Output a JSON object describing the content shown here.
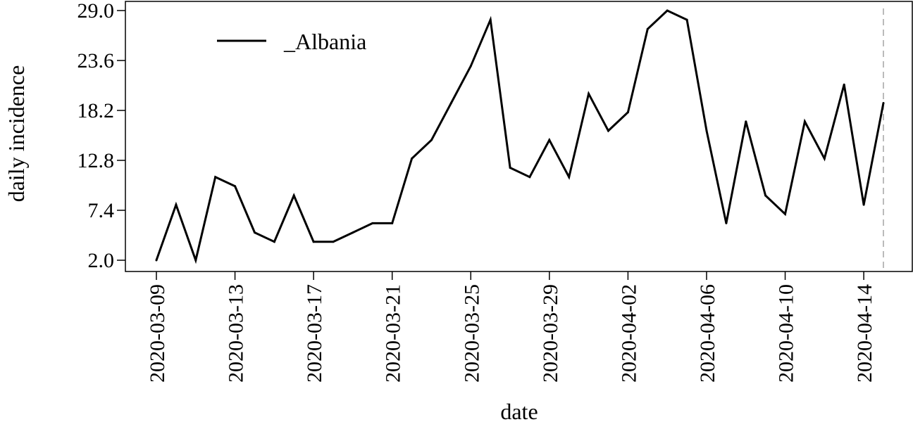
{
  "chart_data": {
    "type": "line",
    "xlabel": "date",
    "ylabel": "daily incidence",
    "ylim": [
      2.0,
      29.0
    ],
    "yticks": [
      "2.0",
      "7.4",
      "12.8",
      "18.2",
      "23.6",
      "29.0"
    ],
    "xticks": [
      "2020-03-09",
      "2020-03-13",
      "2020-03-17",
      "2020-03-21",
      "2020-03-25",
      "2020-03-29",
      "2020-04-02",
      "2020-04-06",
      "2020-04-10",
      "2020-04-14"
    ],
    "x": [
      "2020-03-09",
      "2020-03-10",
      "2020-03-11",
      "2020-03-12",
      "2020-03-13",
      "2020-03-14",
      "2020-03-15",
      "2020-03-16",
      "2020-03-17",
      "2020-03-18",
      "2020-03-19",
      "2020-03-20",
      "2020-03-21",
      "2020-03-22",
      "2020-03-23",
      "2020-03-24",
      "2020-03-25",
      "2020-03-26",
      "2020-03-27",
      "2020-03-28",
      "2020-03-29",
      "2020-03-30",
      "2020-03-31",
      "2020-04-01",
      "2020-04-02",
      "2020-04-03",
      "2020-04-04",
      "2020-04-05",
      "2020-04-06",
      "2020-04-07",
      "2020-04-08",
      "2020-04-09",
      "2020-04-10",
      "2020-04-11",
      "2020-04-12",
      "2020-04-13",
      "2020-04-14",
      "2020-04-15"
    ],
    "series": [
      {
        "name": "_Albania",
        "color": "#000000",
        "values": [
          2,
          8,
          2,
          11,
          10,
          5,
          4,
          9,
          4,
          4,
          5,
          6,
          6,
          13,
          15,
          19,
          23,
          28,
          12,
          11,
          15,
          11,
          20,
          16,
          18,
          27,
          29,
          28,
          16,
          6,
          17,
          9,
          7,
          17,
          13,
          21,
          8,
          19
        ]
      }
    ],
    "marker_line": {
      "x": "2020-04-15",
      "color": "#bbbbbb",
      "style": "dashed"
    },
    "grid": false,
    "legend": "top-left"
  }
}
